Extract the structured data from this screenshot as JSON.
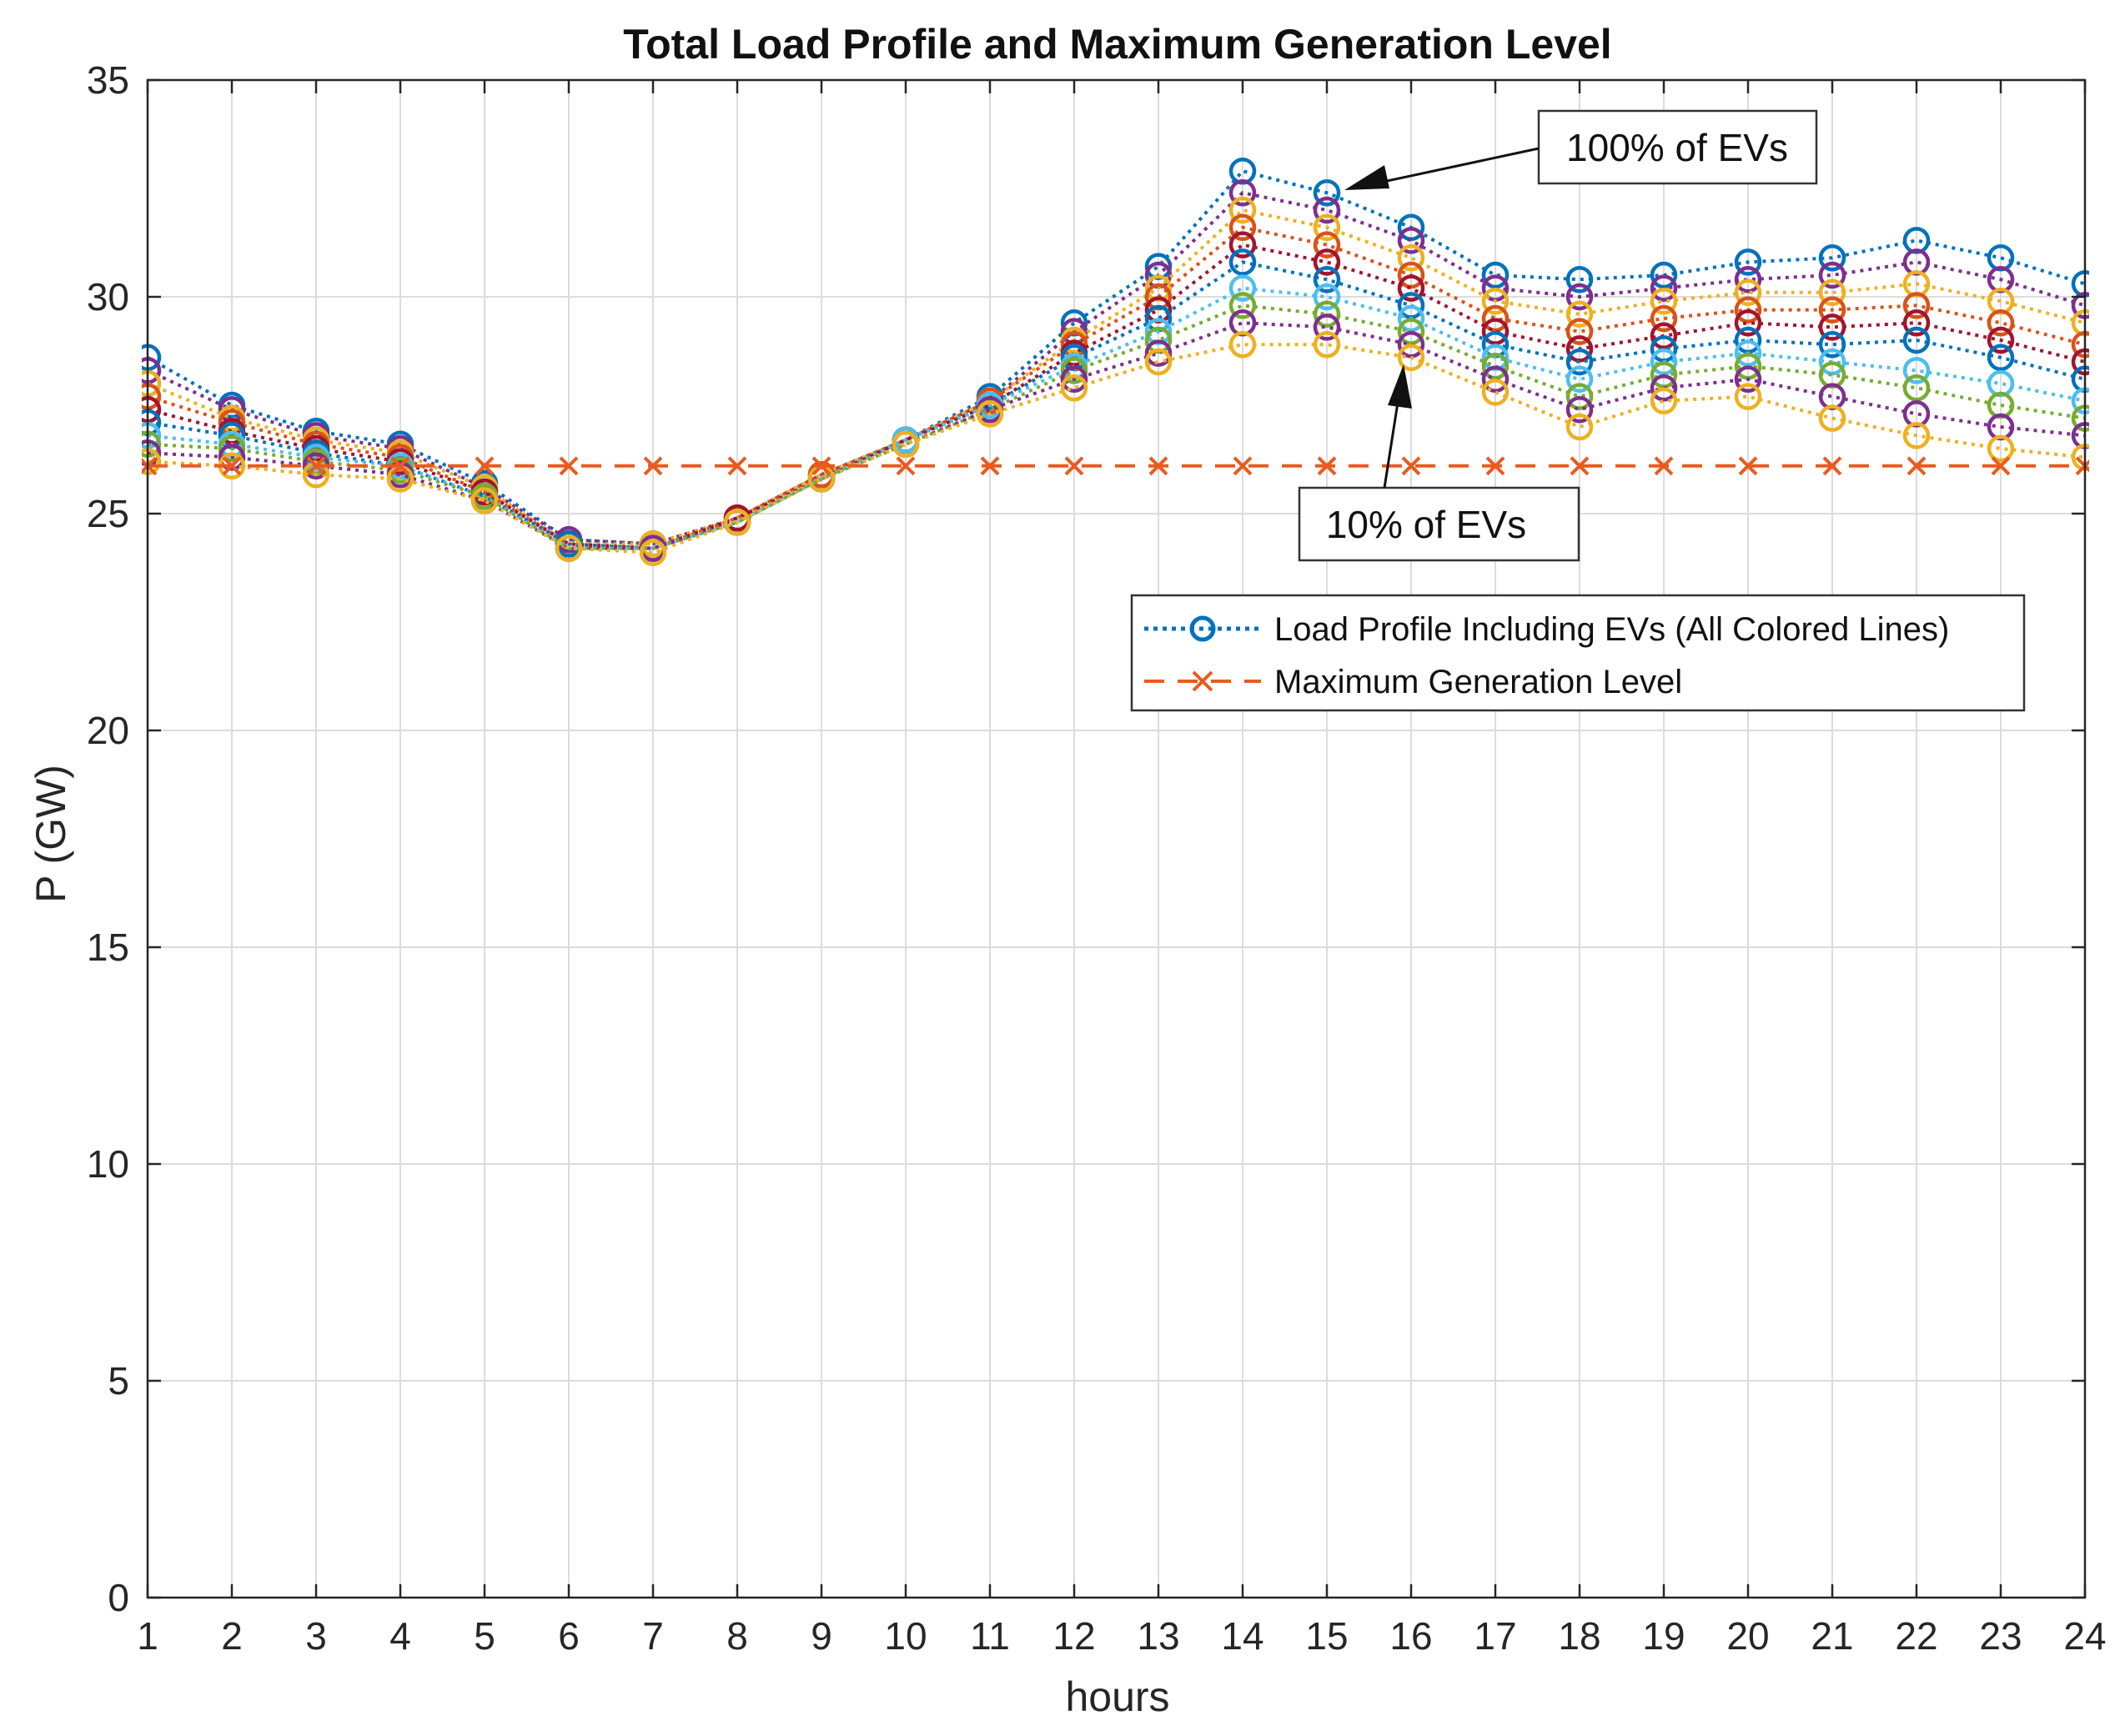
{
  "chart_data": {
    "type": "line",
    "title": "Total Load Profile and Maximum Generation Level",
    "xlabel": "hours",
    "ylabel": "P (GW)",
    "xlim": [
      1,
      24
    ],
    "ylim": [
      0,
      35
    ],
    "xticks": [
      1,
      2,
      3,
      4,
      5,
      6,
      7,
      8,
      9,
      10,
      11,
      12,
      13,
      14,
      15,
      16,
      17,
      18,
      19,
      20,
      21,
      22,
      23,
      24
    ],
    "yticks": [
      0,
      5,
      10,
      15,
      20,
      25,
      30,
      35
    ],
    "grid": true,
    "legend": {
      "placement": "upper-right",
      "entries": [
        "Load Profile Including EVs (All Colored Lines)",
        "Maximum Generation Level"
      ]
    },
    "annotations": [
      {
        "text": "100% of EVs",
        "points_to": [
          15,
          32.4
        ]
      },
      {
        "text": "10% of EVs",
        "points_to": [
          16,
          28.6
        ]
      }
    ],
    "x": [
      1,
      2,
      3,
      4,
      5,
      6,
      7,
      8,
      9,
      10,
      11,
      12,
      13,
      14,
      15,
      16,
      17,
      18,
      19,
      20,
      21,
      22,
      23,
      24
    ],
    "series": [
      {
        "color": "#0072bd",
        "marker": "circle",
        "line": "dotted",
        "values": [
          28.6,
          27.5,
          26.9,
          26.6,
          25.7,
          24.4,
          24.3,
          24.9,
          25.9,
          26.7,
          27.7,
          29.4,
          30.7,
          32.9,
          32.4,
          31.6,
          30.5,
          30.4,
          30.5,
          30.8,
          30.9,
          31.3,
          30.9,
          30.3
        ]
      },
      {
        "color": "#7e2f8e",
        "marker": "circle",
        "line": "dotted",
        "values": [
          28.3,
          27.4,
          26.8,
          26.5,
          25.6,
          24.4,
          24.3,
          24.9,
          25.9,
          26.7,
          27.6,
          29.2,
          30.5,
          32.4,
          32.0,
          31.3,
          30.2,
          30.0,
          30.2,
          30.4,
          30.5,
          30.8,
          30.4,
          29.8
        ]
      },
      {
        "color": "#edb120",
        "marker": "circle",
        "line": "dotted",
        "values": [
          28.0,
          27.2,
          26.7,
          26.4,
          25.6,
          24.3,
          24.3,
          24.9,
          25.9,
          26.7,
          27.6,
          29.0,
          30.2,
          32.0,
          31.6,
          30.9,
          29.9,
          29.6,
          29.9,
          30.1,
          30.1,
          30.3,
          29.9,
          29.4
        ]
      },
      {
        "color": "#d95319",
        "marker": "circle",
        "line": "dotted",
        "values": [
          27.7,
          27.1,
          26.6,
          26.3,
          25.5,
          24.3,
          24.2,
          24.9,
          25.9,
          26.7,
          27.6,
          28.9,
          30.0,
          31.6,
          31.2,
          30.5,
          29.5,
          29.2,
          29.5,
          29.7,
          29.7,
          29.8,
          29.4,
          28.9
        ]
      },
      {
        "color": "#a2142f",
        "marker": "circle",
        "line": "dotted",
        "values": [
          27.4,
          26.9,
          26.5,
          26.2,
          25.5,
          24.3,
          24.2,
          24.9,
          25.8,
          26.7,
          27.5,
          28.7,
          29.7,
          31.2,
          30.8,
          30.2,
          29.2,
          28.8,
          29.1,
          29.4,
          29.3,
          29.4,
          29.0,
          28.5
        ]
      },
      {
        "color": "#0072bd",
        "marker": "circle",
        "line": "dotted",
        "values": [
          27.1,
          26.8,
          26.4,
          26.1,
          25.4,
          24.3,
          24.2,
          24.8,
          25.8,
          26.7,
          27.5,
          28.6,
          29.5,
          30.8,
          30.4,
          29.8,
          28.9,
          28.5,
          28.8,
          29.0,
          28.9,
          29.0,
          28.6,
          28.1
        ]
      },
      {
        "color": "#4dbeee",
        "marker": "circle",
        "line": "dotted",
        "values": [
          26.8,
          26.6,
          26.3,
          26.1,
          25.4,
          24.2,
          24.2,
          24.8,
          25.8,
          26.7,
          27.5,
          28.4,
          29.2,
          30.2,
          30.0,
          29.5,
          28.6,
          28.1,
          28.5,
          28.7,
          28.5,
          28.3,
          28.0,
          27.6
        ]
      },
      {
        "color": "#77ac30",
        "marker": "circle",
        "line": "dotted",
        "values": [
          26.6,
          26.5,
          26.2,
          26.0,
          25.4,
          24.2,
          24.2,
          24.8,
          25.8,
          26.6,
          27.4,
          28.3,
          29.0,
          29.8,
          29.6,
          29.2,
          28.4,
          27.7,
          28.2,
          28.4,
          28.2,
          27.9,
          27.5,
          27.2
        ]
      },
      {
        "color": "#7e2f8e",
        "marker": "circle",
        "line": "dotted",
        "values": [
          26.4,
          26.3,
          26.1,
          25.9,
          25.3,
          24.2,
          24.2,
          24.8,
          25.8,
          26.6,
          27.4,
          28.1,
          28.7,
          29.4,
          29.3,
          28.9,
          28.1,
          27.4,
          27.9,
          28.1,
          27.7,
          27.3,
          27.0,
          26.8
        ]
      },
      {
        "color": "#edb120",
        "marker": "circle",
        "line": "dotted",
        "values": [
          26.2,
          26.1,
          25.9,
          25.8,
          25.3,
          24.2,
          24.1,
          24.8,
          25.8,
          26.6,
          27.3,
          27.9,
          28.5,
          28.9,
          28.9,
          28.6,
          27.8,
          27.0,
          27.6,
          27.7,
          27.2,
          26.8,
          26.5,
          26.3
        ]
      },
      {
        "name": "Maximum Generation Level",
        "color": "#ea5a1f",
        "marker": "x",
        "line": "dashed",
        "values": [
          26.1,
          26.1,
          26.1,
          26.1,
          26.1,
          26.1,
          26.1,
          26.1,
          26.1,
          26.1,
          26.1,
          26.1,
          26.1,
          26.1,
          26.1,
          26.1,
          26.1,
          26.1,
          26.1,
          26.1,
          26.1,
          26.1,
          26.1,
          26.1
        ]
      }
    ]
  }
}
